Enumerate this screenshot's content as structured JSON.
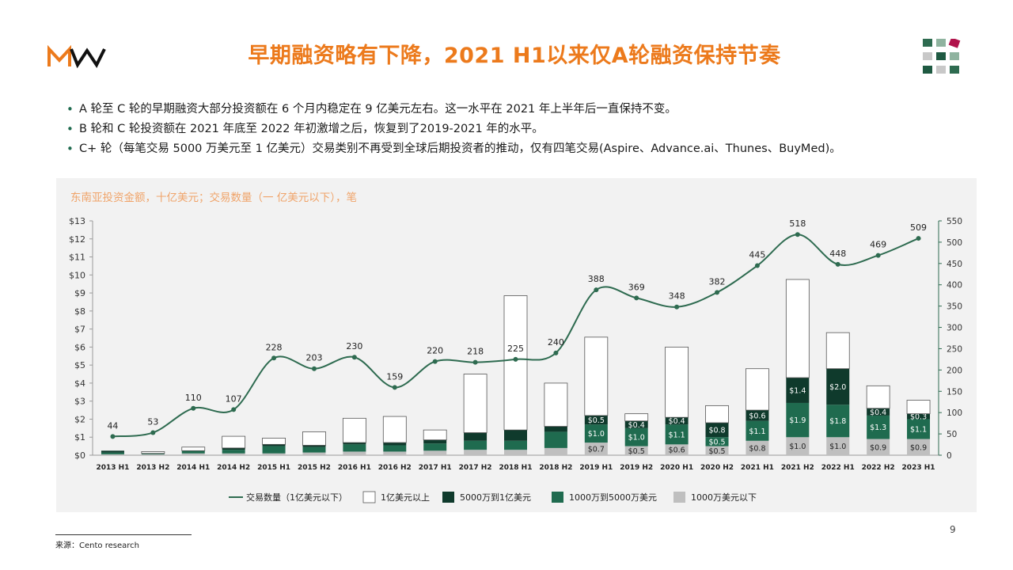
{
  "header": {
    "title": "早期融资略有下降，2021 H1以来仅A轮融资保持节奏",
    "brand_colors": {
      "accent": "#ec7a1c",
      "dark_green": "#0f3a2c",
      "green": "#1f6b4f",
      "mid_green": "#2e7d5b",
      "grey": "#bfbfbf"
    }
  },
  "bullets": [
    "A 轮至 C 轮的早期融资大部分投资额在 6 个月内稳定在 9 亿美元左右。这一水平在 2021 年上半年后一直保持不变。",
    "B 轮和 C 轮投资额在 2021 年底至 2022 年初激增之后，恢复到了2019-2021 年的水平。",
    "C+ 轮（每笔交易 5000 万美元至 1 亿美元）交易类别不再受到全球后期投资者的推动，仅有四笔交易(Aspire、Advance.ai、Thunes、BuyMed)。"
  ],
  "chart_data": {
    "type": "bar",
    "subtitle": "东南亚投资金额，十亿美元；交易数量（一 亿美元以下），笔",
    "categories": [
      "2013 H1",
      "2013 H2",
      "2014 H1",
      "2014 H2",
      "2015 H1",
      "2015 H2",
      "2016 H1",
      "2016 H2",
      "2017 H1",
      "2017 H2",
      "2018 H1",
      "2018 H2",
      "2019 H1",
      "2019 H2",
      "2020 H1",
      "2020 H2",
      "2021 H1",
      "2021 H2",
      "2022 H1",
      "2022 H2",
      "2023 H1"
    ],
    "left_axis": {
      "ticks": [
        "$0",
        "$1",
        "$2",
        "$3",
        "$4",
        "$5",
        "$6",
        "$7",
        "$8",
        "$9",
        "$10",
        "$11",
        "$12",
        "$13"
      ],
      "ylim": [
        0,
        13
      ]
    },
    "right_axis": {
      "ticks": [
        "0",
        "50",
        "100",
        "150",
        "200",
        "250",
        "300",
        "350",
        "400",
        "450",
        "500",
        "550"
      ],
      "ylim": [
        0,
        550
      ]
    },
    "stacked": true,
    "series": [
      {
        "name": "1000万美元以下",
        "color": "#bfbfbf",
        "values": [
          0.05,
          0.05,
          0.1,
          0.1,
          0.1,
          0.15,
          0.2,
          0.2,
          0.25,
          0.3,
          0.3,
          0.4,
          0.7,
          0.5,
          0.6,
          0.5,
          0.8,
          1.0,
          1.0,
          0.9,
          0.9
        ],
        "labels": [
          "",
          "",
          "",
          "",
          "",
          "",
          "",
          "",
          "",
          "",
          "",
          "",
          "$0.7",
          "$0.5",
          "$0.6",
          "$0.5",
          "$0.8",
          "$1.0",
          "$1.0",
          "$0.9",
          "$0.9"
        ]
      },
      {
        "name": "1000万到5000万美元",
        "color": "#1f6b4f",
        "values": [
          0.1,
          0.05,
          0.15,
          0.2,
          0.4,
          0.3,
          0.4,
          0.35,
          0.4,
          0.5,
          0.5,
          0.9,
          1.0,
          1.0,
          1.1,
          0.5,
          1.1,
          1.9,
          1.8,
          1.3,
          1.1
        ],
        "labels": [
          "",
          "",
          "",
          "",
          "",
          "",
          "",
          "",
          "",
          "",
          "",
          "",
          "$1.0",
          "$1.0",
          "$1.1",
          "$0.5",
          "$1.1",
          "$1.9",
          "$1.8",
          "$1.3",
          "$1.1"
        ]
      },
      {
        "name": "5000万到1亿美元",
        "color": "#0f3a2c",
        "values": [
          0.1,
          0,
          0,
          0.1,
          0.1,
          0.1,
          0.1,
          0.15,
          0.2,
          0.45,
          0.6,
          0.3,
          0.5,
          0.4,
          0.4,
          0.8,
          0.6,
          1.4,
          2.0,
          0.4,
          0.3
        ],
        "labels": [
          "",
          "",
          "",
          "",
          "",
          "",
          "",
          "",
          "",
          "",
          "",
          "",
          "$0.5",
          "$0.4",
          "$0.4",
          "$0.8",
          "$0.6",
          "$1.4",
          "$2.0",
          "$0.4",
          "$0.3"
        ]
      },
      {
        "name": "1亿美元以上",
        "color": "#ffffff",
        "values": [
          0,
          0.1,
          0.2,
          0.65,
          0.35,
          0.75,
          1.35,
          1.45,
          0.55,
          3.25,
          7.45,
          2.4,
          4.35,
          0.4,
          3.9,
          0.95,
          2.3,
          5.45,
          2.0,
          1.25,
          0.75
        ],
        "labels": [
          "",
          "",
          "",
          "",
          "",
          "",
          "",
          "",
          "",
          "",
          "",
          "",
          "",
          "",
          "",
          "",
          "",
          "",
          "",
          "",
          ""
        ]
      },
      {
        "name": "交易数量（1亿美元以下）",
        "type": "line",
        "axis": "right",
        "color": "#2e6b50",
        "values": [
          44,
          53,
          110,
          107,
          228,
          203,
          230,
          159,
          220,
          218,
          225,
          240,
          388,
          369,
          348,
          382,
          445,
          518,
          448,
          469,
          509
        ]
      }
    ],
    "legend": {
      "placement": "bottom",
      "items": [
        "交易数量（1亿美元以下）",
        "1亿美元以上",
        "5000万到1亿美元",
        "1000万到5000万美元",
        "1000万美元以下"
      ]
    }
  },
  "footer": {
    "source": "来源：Cento research",
    "page_number": "9"
  }
}
